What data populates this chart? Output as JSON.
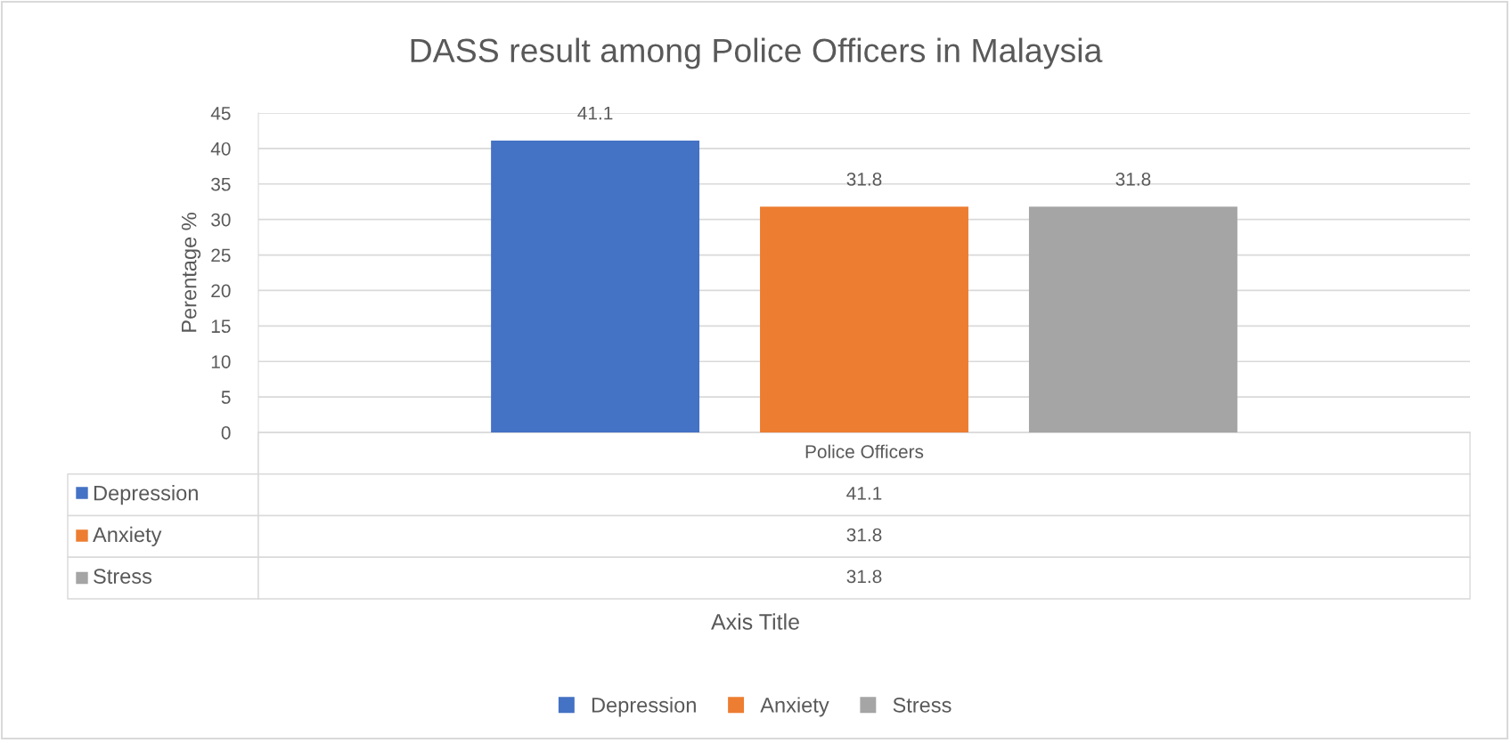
{
  "chart_data": {
    "type": "bar",
    "title": "DASS result among Police Officers in Malaysia",
    "annotations": [
      "Axis Title",
      "41.1",
      "31.8",
      "31.8"
    ],
    "ylabel": "Perentage %",
    "categories": [
      "Police Officers"
    ],
    "series": [
      {
        "name": "Depression",
        "color": "#4472c4",
        "values": [
          41.1
        ]
      },
      {
        "name": "Anxiety",
        "color": "#ed7d31",
        "values": [
          31.8
        ]
      },
      {
        "name": "Stress",
        "color": "#a5a5a5",
        "values": [
          31.8
        ]
      }
    ],
    "ylim": [
      0,
      45
    ],
    "yticks": [
      0,
      5,
      10,
      15,
      20,
      25,
      30,
      35,
      40,
      45
    ],
    "grid": "y",
    "legend": "bottom",
    "data_labels": true
  }
}
